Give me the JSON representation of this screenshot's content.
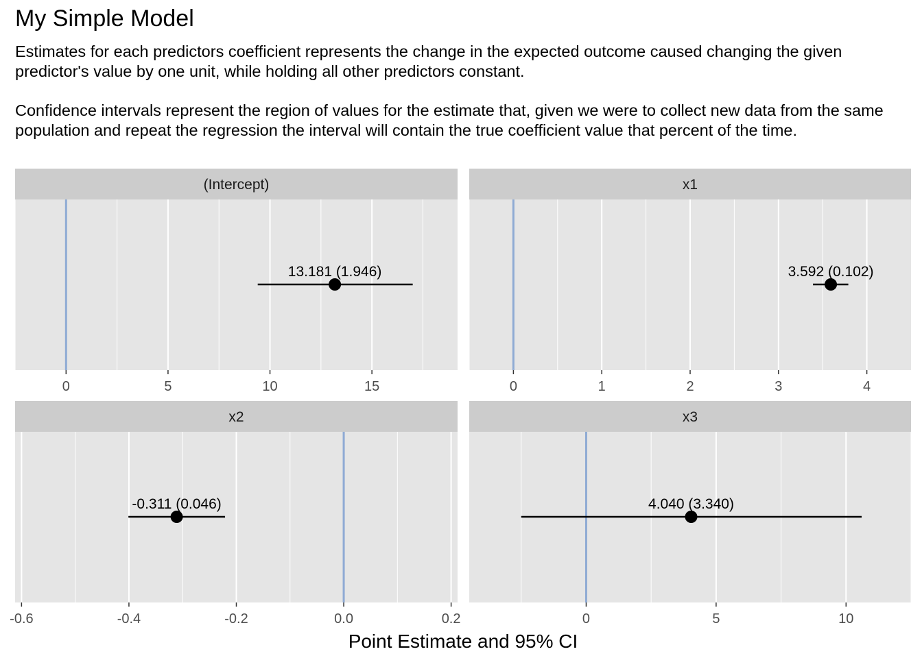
{
  "title": "My Simple Model",
  "subtitle": {
    "p1": "Estimates for each predictors coefficient represents the change in the expected outcome caused changing the given predictor's value by one unit, while holding all other predictors constant.",
    "p2": "Confidence intervals represent the region of values for the estimate that, given we were to collect new data from the same population and repeat the regression the interval will contain the true coefficient value that percent of the time."
  },
  "colors": {
    "panel_bg": "#e5e5e5",
    "strip_bg": "#cccccc",
    "grid": "#ffffff",
    "zero_line": "#8fabd4",
    "point": "#000000",
    "axis_text": "#4d4d4d"
  },
  "chart_data": {
    "type": "coefficient_plot",
    "xlabel": "Point Estimate and 95% CI",
    "ylabel": "",
    "reference_line": 0,
    "panels": [
      {
        "name": "(Intercept)",
        "estimate": 13.181,
        "se": 1.946,
        "ci": [
          9.4,
          17.0
        ],
        "label": "13.181 (1.946)",
        "xlim": [
          -2.5,
          19.2
        ],
        "ticks": [
          0,
          5,
          10,
          15
        ],
        "tick_labels": [
          "0",
          "5",
          "10",
          "15"
        ],
        "minor_ticks": [
          -2.5,
          2.5,
          7.5,
          12.5,
          17.5
        ]
      },
      {
        "name": "x1",
        "estimate": 3.592,
        "se": 0.102,
        "ci": [
          3.39,
          3.79
        ],
        "label": "3.592 (0.102)",
        "xlim": [
          -0.5,
          4.5
        ],
        "ticks": [
          0,
          1,
          2,
          3,
          4
        ],
        "tick_labels": [
          "0",
          "1",
          "2",
          "3",
          "4"
        ],
        "minor_ticks": [
          -0.5,
          0.5,
          1.5,
          2.5,
          3.5
        ]
      },
      {
        "name": "x2",
        "estimate": -0.311,
        "se": 0.046,
        "ci": [
          -0.401,
          -0.221
        ],
        "label": "-0.311 (0.046)",
        "xlim": [
          -0.612,
          0.212
        ],
        "ticks": [
          -0.6,
          -0.4,
          -0.2,
          0.0,
          0.2
        ],
        "tick_labels": [
          "-0.6",
          "-0.4",
          "-0.2",
          "0.0",
          "0.2"
        ],
        "minor_ticks": [
          -0.5,
          -0.3,
          -0.1,
          0.1
        ]
      },
      {
        "name": "x3",
        "estimate": 4.04,
        "se": 3.34,
        "ci": [
          -2.5,
          10.6
        ],
        "label": "4.040 (3.340)",
        "xlim": [
          -4.5,
          12.5
        ],
        "ticks": [
          0,
          5,
          10
        ],
        "tick_labels": [
          "0",
          "5",
          "10"
        ],
        "minor_ticks": [
          -2.5,
          2.5,
          7.5,
          12.5
        ]
      }
    ]
  }
}
